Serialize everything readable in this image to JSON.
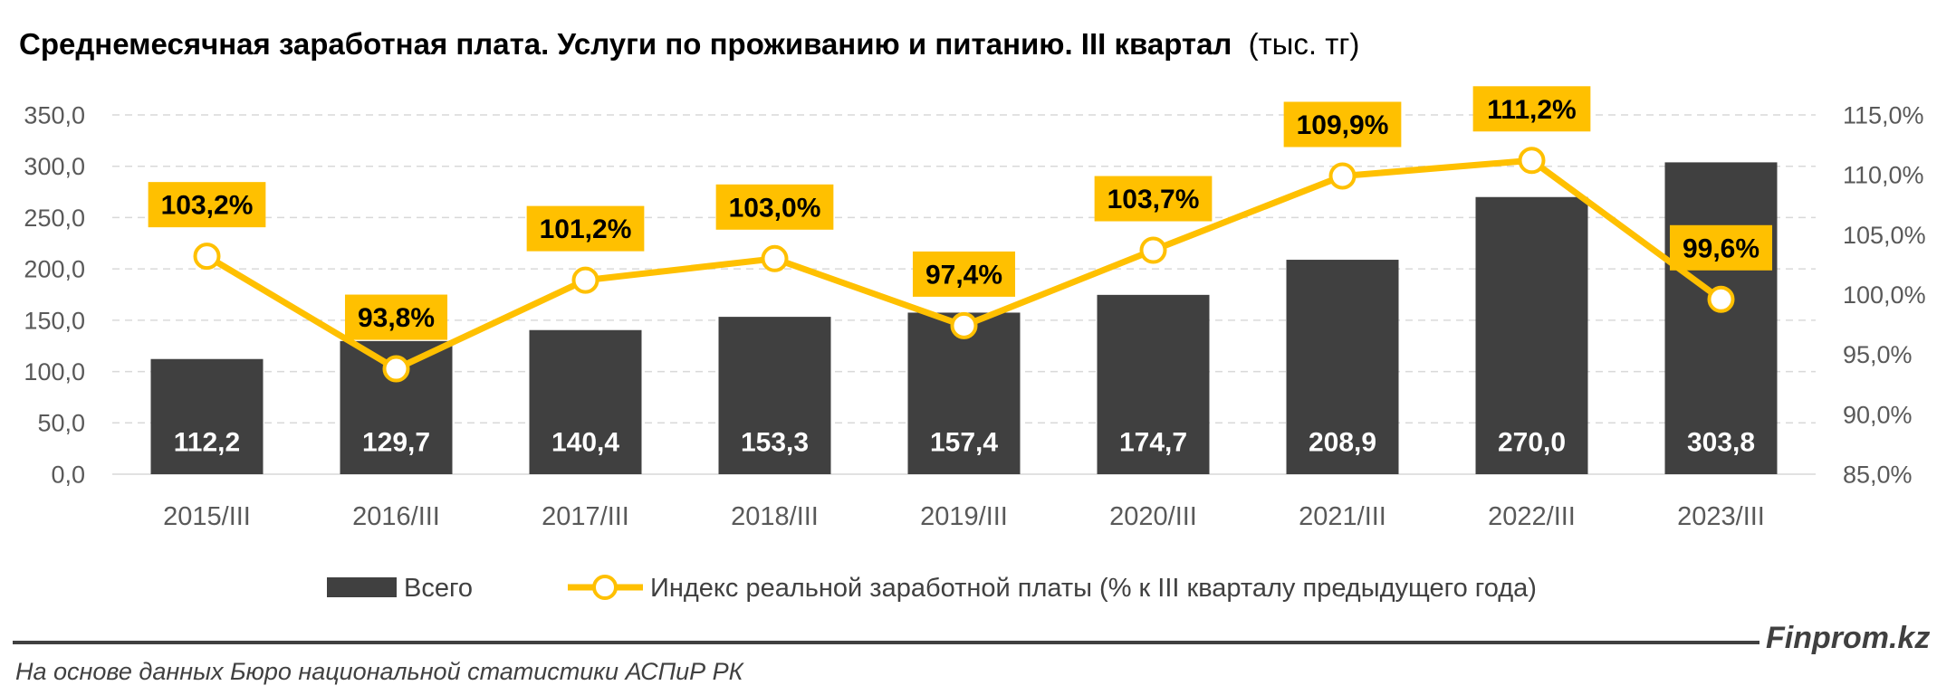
{
  "chart_data": {
    "type": "bar",
    "title": "Среднемесячная заработная плата. Услуги по проживанию и питанию. III квартал",
    "title_unit": "(тыс. тг)",
    "categories": [
      "2015/III",
      "2016/III",
      "2017/III",
      "2018/III",
      "2019/III",
      "2020/III",
      "2021/III",
      "2022/III",
      "2023/III"
    ],
    "series": [
      {
        "name": "Всего",
        "type": "bar",
        "axis": "left",
        "values": [
          112.2,
          129.7,
          140.4,
          153.3,
          157.4,
          174.7,
          208.9,
          270.0,
          303.8
        ],
        "labels": [
          "112,2",
          "129,7",
          "140,4",
          "153,3",
          "157,4",
          "174,7",
          "208,9",
          "270,0",
          "303,8"
        ]
      },
      {
        "name": "Индекс реальной заработной платы (% к III кварталу предыдущего года)",
        "type": "line",
        "axis": "right",
        "values": [
          103.2,
          93.8,
          101.2,
          103.0,
          97.4,
          103.7,
          109.9,
          111.2,
          99.6
        ],
        "labels": [
          "103,2%",
          "93,8%",
          "101,2%",
          "103,0%",
          "97,4%",
          "103,7%",
          "109,9%",
          "111,2%",
          "99,6%"
        ]
      }
    ],
    "y_left": {
      "min": 0,
      "max": 350,
      "step": 50,
      "tick_labels": [
        "0,0",
        "50,0",
        "100,0",
        "150,0",
        "200,0",
        "250,0",
        "300,0",
        "350,0"
      ]
    },
    "y_right": {
      "min": 85,
      "max": 115,
      "step": 5,
      "tick_labels": [
        "85,0%",
        "90,0%",
        "95,0%",
        "100,0%",
        "105,0%",
        "110,0%",
        "115,0%"
      ]
    },
    "grid": true,
    "legend": "bottom"
  },
  "footer": {
    "source": "На основе данных Бюро национальной статистики АСПиР РК",
    "brand": "Finprom.kz"
  },
  "colors": {
    "bars": "#404040",
    "line": "#FFC000",
    "label_box": "#FFC000",
    "label_text": "#000000",
    "bar_label_text": "#FFFFFF",
    "axis_text": "#595959",
    "grid": "#D9D9D9",
    "marker_fill": "#FFFFFF",
    "title_text": "#000000",
    "footer_text": "#404040"
  }
}
